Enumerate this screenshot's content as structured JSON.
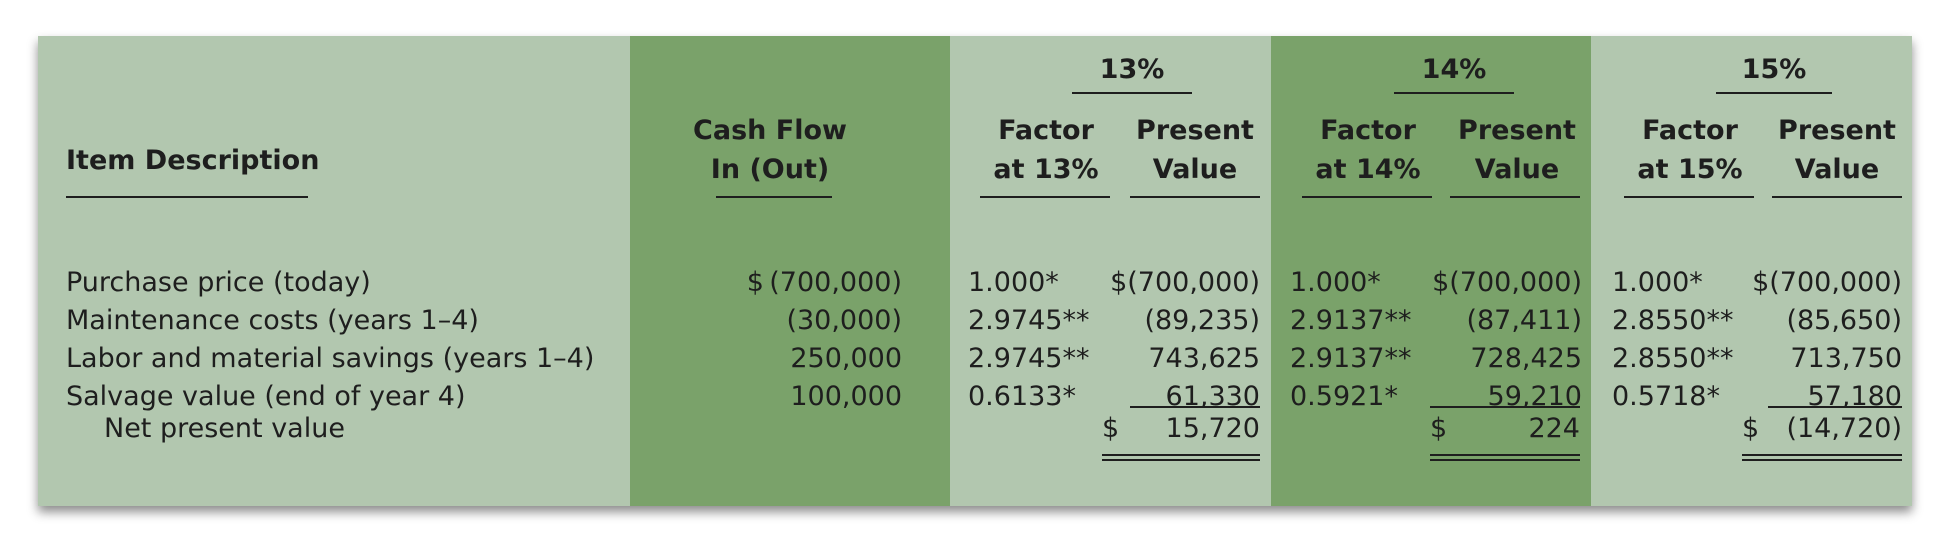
{
  "header": {
    "item_description": "Item Description",
    "cash_flow_line1": "Cash Flow",
    "cash_flow_line2": "In (Out)",
    "rates": [
      "13%",
      "14%",
      "15%"
    ],
    "factor_line1": "Factor",
    "factor_line2": [
      "at 13%",
      "at 14%",
      "at 15%"
    ],
    "pv_line1": "Present",
    "pv_line2": "Value"
  },
  "rows": [
    {
      "description": "Purchase price (today)",
      "cash_flow": "$ (700,000)",
      "f13": "1.000*",
      "pv13": "$(700,000)",
      "f14": "1.000*",
      "pv14": "$(700,000)",
      "f15": "1.000*",
      "pv15": "$(700,000)"
    },
    {
      "description": "Maintenance costs (years 1–4)",
      "cash_flow": "(30,000)",
      "f13": "2.9745**",
      "pv13": "(89,235)",
      "f14": "2.9137**",
      "pv14": "(87,411)",
      "f15": "2.8550**",
      "pv15": "(85,650)"
    },
    {
      "description": "Labor and material savings (years 1–4)",
      "cash_flow": "250,000",
      "f13": "2.9745**",
      "pv13": "743,625",
      "f14": "2.9137**",
      "pv14": "728,425",
      "f15": "2.8550**",
      "pv15": "713,750"
    },
    {
      "description": "Salvage value (end of year 4)",
      "cash_flow": "100,000",
      "f13": "0.6133*",
      "pv13": "61,330",
      "f14": "0.5921*",
      "pv14": "59,210",
      "f15": "0.5718*",
      "pv15": "57,180"
    }
  ],
  "net_present_value": {
    "label": "Net present value",
    "npv13_sign": "$",
    "npv13": "15,720",
    "npv14_sign": "$",
    "npv14": "224",
    "npv15_sign": "$",
    "npv15": "(14,720)"
  },
  "colors": {
    "panel_background": "#b2c7af",
    "band_background": "#7aa26a",
    "text": "#1e1e1e"
  }
}
